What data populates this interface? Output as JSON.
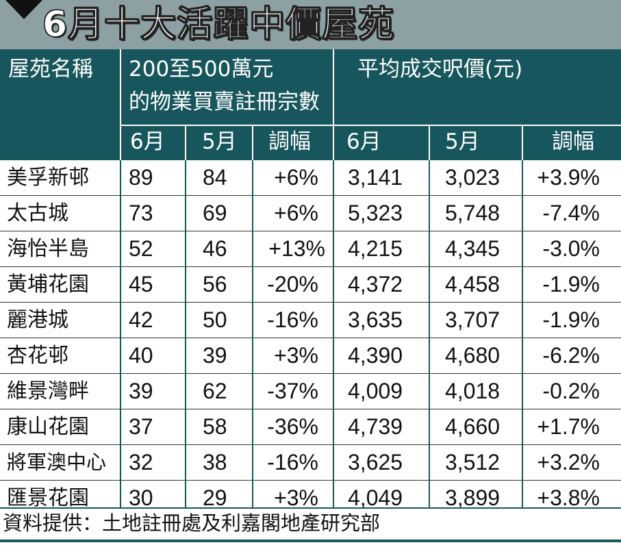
{
  "title": "6月十大活躍中價屋苑",
  "header": {
    "estate_name": "屋苑名稱",
    "registrations_line1": "200至500萬元",
    "registrations_line2": "的物業買賣註冊宗數",
    "avg_price": "平均成交呎價(元)",
    "sub": {
      "reg_june": "6月",
      "reg_may": "5月",
      "reg_change": "調幅",
      "price_june": "6月",
      "price_may": "5月",
      "price_change": "調幅"
    }
  },
  "rows": [
    {
      "name": "美孚新邨",
      "reg_june": "89",
      "reg_may": "84",
      "reg_change": "+6%",
      "price_june": "3,141",
      "price_may": "3,023",
      "price_change": "+3.9%"
    },
    {
      "name": "太古城",
      "reg_june": "73",
      "reg_may": "69",
      "reg_change": "+6%",
      "price_june": "5,323",
      "price_may": "5,748",
      "price_change": "-7.4%"
    },
    {
      "name": "海怡半島",
      "reg_june": "52",
      "reg_may": "46",
      "reg_change": "+13%",
      "price_june": "4,215",
      "price_may": "4,345",
      "price_change": "-3.0%"
    },
    {
      "name": "黃埔花園",
      "reg_june": "45",
      "reg_may": "56",
      "reg_change": "-20%",
      "price_june": "4,372",
      "price_may": "4,458",
      "price_change": "-1.9%"
    },
    {
      "name": "麗港城",
      "reg_june": "42",
      "reg_may": "50",
      "reg_change": "-16%",
      "price_june": "3,635",
      "price_may": "3,707",
      "price_change": "-1.9%"
    },
    {
      "name": "杏花邨",
      "reg_june": "40",
      "reg_may": "39",
      "reg_change": "+3%",
      "price_june": "4,390",
      "price_may": "4,680",
      "price_change": "-6.2%"
    },
    {
      "name": "維景灣畔",
      "reg_june": "39",
      "reg_may": "62",
      "reg_change": "-37%",
      "price_june": "4,009",
      "price_may": "4,018",
      "price_change": "-0.2%"
    },
    {
      "name": "康山花園",
      "reg_june": "37",
      "reg_may": "58",
      "reg_change": "-36%",
      "price_june": "4,739",
      "price_may": "4,660",
      "price_change": "+1.7%"
    },
    {
      "name": "將軍澳中心",
      "reg_june": "32",
      "reg_may": "38",
      "reg_change": "-16%",
      "price_june": "3,625",
      "price_may": "3,512",
      "price_change": "+3.2%"
    },
    {
      "name": "匯景花園",
      "reg_june": "30",
      "reg_may": "29",
      "reg_change": "+3%",
      "price_june": "4,049",
      "price_may": "3,899",
      "price_change": "+3.8%"
    }
  ],
  "source": "資料提供：土地註冊處及利嘉閣地產研究部",
  "colors": {
    "title_bg": "#8da0a3",
    "header_bg": "#17565c",
    "text": "#111111"
  }
}
